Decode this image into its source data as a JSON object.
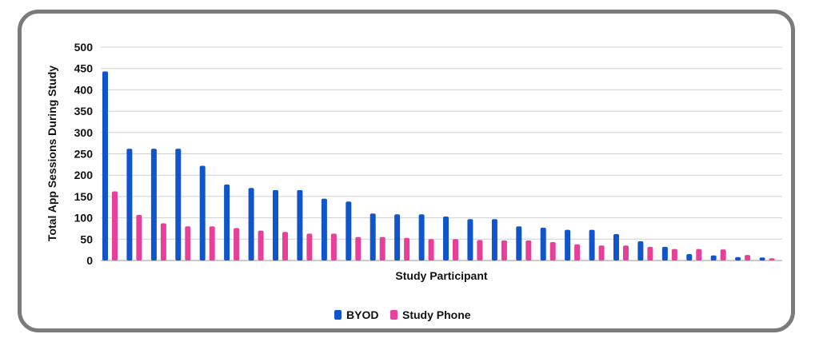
{
  "chart_data": {
    "type": "bar",
    "title": "",
    "xlabel": "Study Participant",
    "ylabel": "Total App Sessions During Study",
    "ylim": [
      0,
      500
    ],
    "yticks": [
      "0",
      "50",
      "100",
      "150",
      "200",
      "250",
      "300",
      "350",
      "400",
      "450",
      "500"
    ],
    "grid": true,
    "legend": "bottom-center",
    "series": [
      {
        "name": "BYOD",
        "color": "#1155cc",
        "values": [
          443,
          262,
          262,
          262,
          222,
          178,
          170,
          165,
          165,
          145,
          138,
          110,
          108,
          108,
          103,
          97,
          97,
          80,
          77,
          72,
          72,
          62,
          45,
          32,
          15,
          12,
          8,
          7
        ]
      },
      {
        "name": "Study Phone",
        "color": "#e8409a",
        "values": [
          162,
          107,
          87,
          80,
          80,
          76,
          70,
          67,
          63,
          63,
          55,
          55,
          53,
          50,
          50,
          48,
          47,
          47,
          43,
          38,
          35,
          35,
          32,
          27,
          27,
          26,
          13,
          5
        ]
      }
    ]
  }
}
